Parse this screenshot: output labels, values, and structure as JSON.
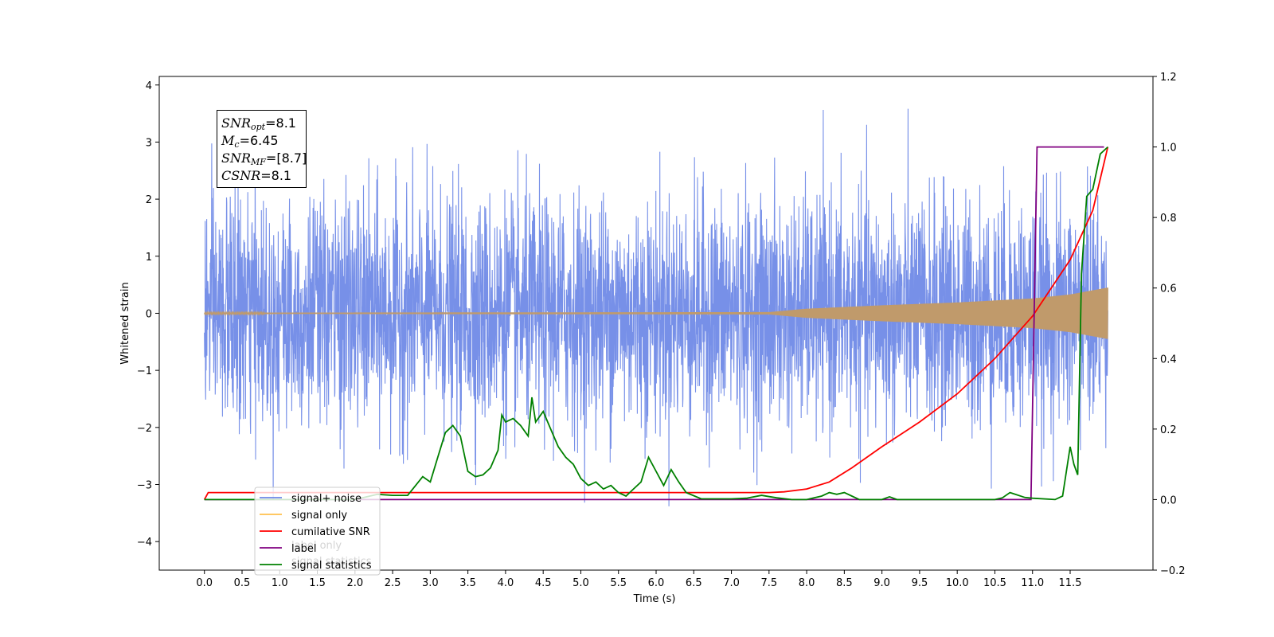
{
  "chart_data": {
    "type": "line",
    "xlabel": "Time (s)",
    "ylabel": "Whitened strain",
    "xlim": [
      -0.6,
      12.6
    ],
    "ylim": [
      -4.5,
      4.15
    ],
    "ylim_right": [
      -0.2,
      1.2
    ],
    "x_ticks": [
      "0.0",
      "0.5",
      "1.0",
      "1.5",
      "2.0",
      "2.5",
      "3.0",
      "3.5",
      "4.0",
      "4.5",
      "5.0",
      "5.5",
      "6.0",
      "6.5",
      "7.0",
      "7.5",
      "8.0",
      "8.5",
      "9.0",
      "9.5",
      "10.0",
      "10.5",
      "11.0",
      "11.5"
    ],
    "y_ticks_left": [
      "4",
      "3",
      "2",
      "1",
      "0",
      "−1",
      "−2",
      "−3",
      "−4"
    ],
    "y_ticks_right": [
      "1.2",
      "1.0",
      "0.8",
      "0.6",
      "0.4",
      "0.2",
      "0.0",
      "−0.2"
    ],
    "annotation": {
      "lines": [
        {
          "sym": "SNR",
          "sub": "opt",
          "value": "=8.1"
        },
        {
          "sym": "M",
          "sub": "c",
          "value": "=6.45"
        },
        {
          "sym": "SNR",
          "sub": "MF",
          "value": "=[8.7]"
        },
        {
          "sym": "CSNR",
          "sub": "",
          "value": "=8.1"
        }
      ]
    },
    "legend": {
      "placement": "lower-left",
      "entries": [
        "signal+ noise",
        "signal only",
        "cumilative SNR",
        "label",
        "signal statistics"
      ],
      "ghost_text": [
        "label only",
        "signal statistics"
      ]
    },
    "series": [
      {
        "name": "signal+ noise",
        "axis": "left",
        "color": "#6b87e6",
        "kind": "noise",
        "x_range": [
          0.0,
          12.0
        ],
        "amplitude_std": 1.0,
        "max_abs": 3.75
      },
      {
        "name": "signal only",
        "axis": "left",
        "color": "#c09a6b",
        "kind": "chirp",
        "x_range": [
          0.0,
          12.0
        ],
        "envelope": [
          [
            0.0,
            0.01
          ],
          [
            7.5,
            0.02
          ],
          [
            8.0,
            0.08
          ],
          [
            9.0,
            0.14
          ],
          [
            10.0,
            0.19
          ],
          [
            11.0,
            0.26
          ],
          [
            11.5,
            0.33
          ],
          [
            12.0,
            0.45
          ]
        ]
      },
      {
        "name": "cumilative SNR",
        "axis": "right",
        "color": "#ff0000",
        "points": [
          [
            0.0,
            0.0
          ],
          [
            0.05,
            0.02
          ],
          [
            7.5,
            0.02
          ],
          [
            7.7,
            0.022
          ],
          [
            8.0,
            0.03
          ],
          [
            8.3,
            0.05
          ],
          [
            8.6,
            0.09
          ],
          [
            9.0,
            0.15
          ],
          [
            9.5,
            0.22
          ],
          [
            10.0,
            0.3
          ],
          [
            10.5,
            0.4
          ],
          [
            11.0,
            0.52
          ],
          [
            11.5,
            0.68
          ],
          [
            11.8,
            0.82
          ],
          [
            12.0,
            1.0
          ]
        ]
      },
      {
        "name": "label",
        "axis": "right",
        "color": "#800080",
        "points": [
          [
            0.0,
            0.0
          ],
          [
            10.98,
            0.0
          ],
          [
            11.06,
            1.0
          ],
          [
            11.95,
            1.0
          ]
        ]
      },
      {
        "name": "signal statistics",
        "axis": "right",
        "color": "#008000",
        "points": [
          [
            0.0,
            0.0
          ],
          [
            2.0,
            0.0
          ],
          [
            2.3,
            0.015
          ],
          [
            2.5,
            0.012
          ],
          [
            2.7,
            0.012
          ],
          [
            2.9,
            0.065
          ],
          [
            3.0,
            0.05
          ],
          [
            3.1,
            0.12
          ],
          [
            3.2,
            0.19
          ],
          [
            3.3,
            0.21
          ],
          [
            3.4,
            0.18
          ],
          [
            3.5,
            0.08
          ],
          [
            3.6,
            0.065
          ],
          [
            3.7,
            0.07
          ],
          [
            3.8,
            0.09
          ],
          [
            3.9,
            0.14
          ],
          [
            3.95,
            0.24
          ],
          [
            4.0,
            0.22
          ],
          [
            4.1,
            0.23
          ],
          [
            4.2,
            0.21
          ],
          [
            4.3,
            0.18
          ],
          [
            4.35,
            0.29
          ],
          [
            4.4,
            0.22
          ],
          [
            4.5,
            0.25
          ],
          [
            4.6,
            0.2
          ],
          [
            4.7,
            0.15
          ],
          [
            4.8,
            0.12
          ],
          [
            4.9,
            0.1
          ],
          [
            5.0,
            0.06
          ],
          [
            5.1,
            0.04
          ],
          [
            5.2,
            0.05
          ],
          [
            5.3,
            0.03
          ],
          [
            5.4,
            0.04
          ],
          [
            5.5,
            0.02
          ],
          [
            5.6,
            0.01
          ],
          [
            5.7,
            0.03
          ],
          [
            5.8,
            0.05
          ],
          [
            5.9,
            0.12
          ],
          [
            6.0,
            0.08
          ],
          [
            6.1,
            0.04
          ],
          [
            6.2,
            0.085
          ],
          [
            6.3,
            0.05
          ],
          [
            6.4,
            0.02
          ],
          [
            6.6,
            0.002
          ],
          [
            7.0,
            0.002
          ],
          [
            7.2,
            0.004
          ],
          [
            7.4,
            0.012
          ],
          [
            7.6,
            0.005
          ],
          [
            7.8,
            0.0
          ],
          [
            8.0,
            0.0
          ],
          [
            8.2,
            0.01
          ],
          [
            8.3,
            0.02
          ],
          [
            8.4,
            0.015
          ],
          [
            8.5,
            0.02
          ],
          [
            8.6,
            0.01
          ],
          [
            8.7,
            0.0
          ],
          [
            9.0,
            0.0
          ],
          [
            9.1,
            0.008
          ],
          [
            9.2,
            0.0
          ],
          [
            10.5,
            0.0
          ],
          [
            10.6,
            0.005
          ],
          [
            10.7,
            0.02
          ],
          [
            10.9,
            0.006
          ],
          [
            11.0,
            0.004
          ],
          [
            11.3,
            0.0
          ],
          [
            11.4,
            0.01
          ],
          [
            11.5,
            0.15
          ],
          [
            11.55,
            0.1
          ],
          [
            11.6,
            0.07
          ],
          [
            11.65,
            0.64
          ],
          [
            11.72,
            0.86
          ],
          [
            11.8,
            0.88
          ],
          [
            11.9,
            0.98
          ],
          [
            12.0,
            1.0
          ]
        ]
      }
    ]
  }
}
